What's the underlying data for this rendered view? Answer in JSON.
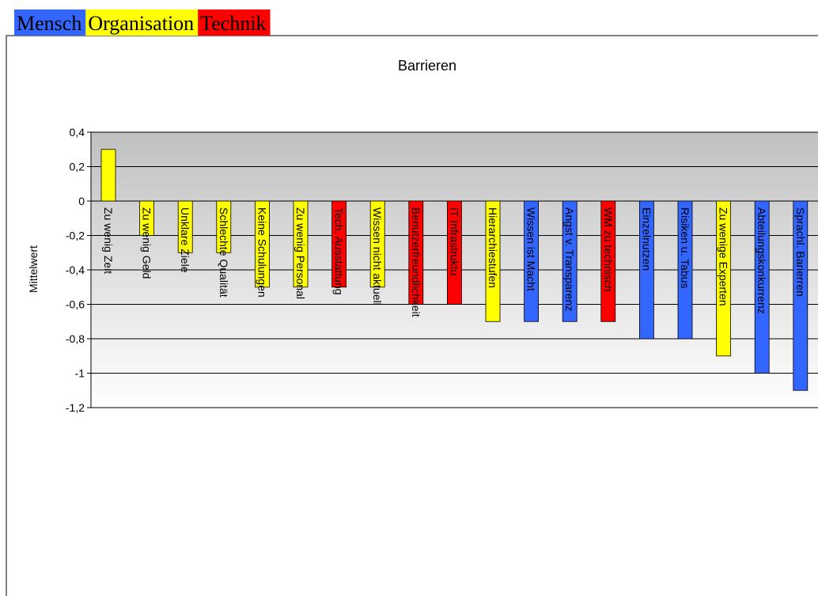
{
  "chart_data": {
    "type": "bar",
    "title": "Barrieren",
    "y_label": "Mittelwert",
    "legend": [
      {
        "name": "Mensch",
        "color": "#3366ff"
      },
      {
        "name": "Organisation",
        "color": "#ffff00"
      },
      {
        "name": "Technik",
        "color": "#ff0000"
      }
    ],
    "categories": [
      "Zu wenig Zeit",
      "Zu wenig Geld",
      "Unklare Ziele",
      "Schlechte Qualität",
      "Keine Schulungen",
      "Zu wenig Personal",
      "Tech. Ausstattung",
      "Wissen nicht aktuell",
      "Benutzerfreundlichkeit",
      "IT Infrastruktu",
      "Hierarchiestufen",
      "Wissen ist Macht",
      "Angst v. Transparenz",
      "WM zu technisch",
      "Einzelnutzen",
      "Risiken u. Tabus",
      "Zu wenige Experten",
      "Abteilungskonkurrenz",
      "Sprachl. Barierren"
    ],
    "values": [
      0.3,
      -0.2,
      -0.3,
      -0.3,
      -0.5,
      -0.5,
      -0.5,
      -0.5,
      -0.6,
      -0.6,
      -0.7,
      -0.7,
      -0.7,
      -0.7,
      -0.8,
      -0.8,
      -0.9,
      -1,
      -1.1
    ],
    "colors": [
      "#ffff00",
      "#ffff00",
      "#ffff00",
      "#ffff00",
      "#ffff00",
      "#ffff00",
      "#ff0000",
      "#ffff00",
      "#ff0000",
      "#ff0000",
      "#ffff00",
      "#3366ff",
      "#3366ff",
      "#ff0000",
      "#3366ff",
      "#3366ff",
      "#ffff00",
      "#3366ff",
      "#3366ff"
    ],
    "ylim": [
      -1.2,
      0.4
    ],
    "yticks": [
      {
        "value": -1.2,
        "label": "-1,2"
      },
      -1,
      {
        "value": -0.8,
        "label": "-0,8"
      },
      {
        "value": -0.6,
        "label": "-0,6"
      },
      {
        "value": -0.4,
        "label": "-0,4"
      },
      {
        "value": -0.2,
        "label": "-0,2"
      },
      0,
      {
        "value": 0.2,
        "label": "0,2"
      },
      {
        "value": 0.4,
        "label": "0,4"
      }
    ],
    "grid": true
  }
}
